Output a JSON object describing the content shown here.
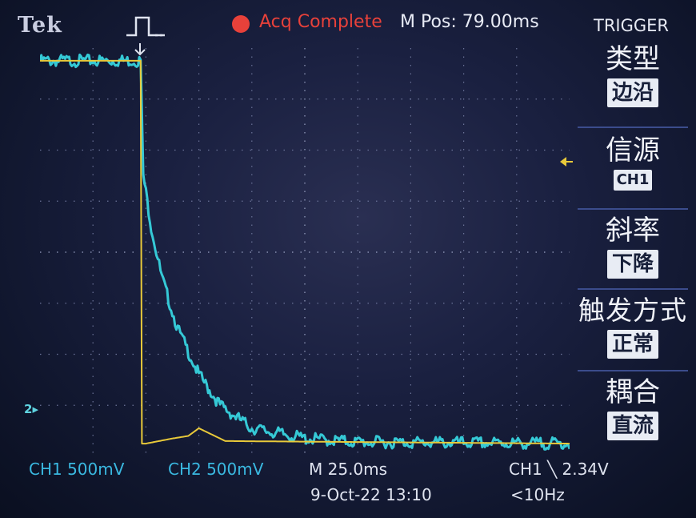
{
  "header": {
    "brand": "Tek",
    "trigger_icon": "pulse-icon",
    "acq_status": "Acq Complete",
    "m_pos": "M Pos: 79.00ms"
  },
  "menu": {
    "title": "TRIGGER",
    "items": [
      {
        "label": "类型",
        "value": "边沿"
      },
      {
        "label": "信源",
        "value": "CH1"
      },
      {
        "label": "斜率",
        "value": "下降"
      },
      {
        "label": "触发方式",
        "value": "正常"
      },
      {
        "label": "耦合",
        "value": "直流"
      }
    ]
  },
  "markers": {
    "ch2_ground": "2"
  },
  "status": {
    "ch1_scale": "CH1  500mV",
    "ch2_scale": "CH2  500mV",
    "timebase": "M 25.0ms",
    "trigger": "CH1 ╲ 2.34V",
    "date": "9-Oct-22 13:10",
    "freq": "<10Hz"
  },
  "colors": {
    "ch1": "#e8c93a",
    "ch2": "#35c9d6",
    "acq": "#e8413a",
    "status_blue": "#3ab8e0"
  },
  "chart_data": {
    "type": "line",
    "xlabel": "",
    "ylabel": "",
    "x_divisions": 10,
    "y_divisions": 8,
    "series": [
      {
        "name": "",
        "x": [
          0,
          1.9,
          1.92,
          2.0,
          2.5,
          2.8,
          3.0,
          3.5,
          10
        ],
        "y": [
          7.75,
          7.75,
          0.25,
          0.25,
          0.35,
          0.4,
          0.55,
          0.3,
          0.25
        ]
      },
      {
        "name": "",
        "x": [
          0,
          1.9,
          1.95,
          2.1,
          2.3,
          2.6,
          3.0,
          3.4,
          4.0,
          5.0,
          6.0,
          10
        ],
        "y": [
          7.75,
          7.75,
          5.5,
          4.5,
          3.5,
          2.5,
          1.6,
          1.0,
          0.55,
          0.35,
          0.28,
          0.25
        ]
      }
    ]
  }
}
